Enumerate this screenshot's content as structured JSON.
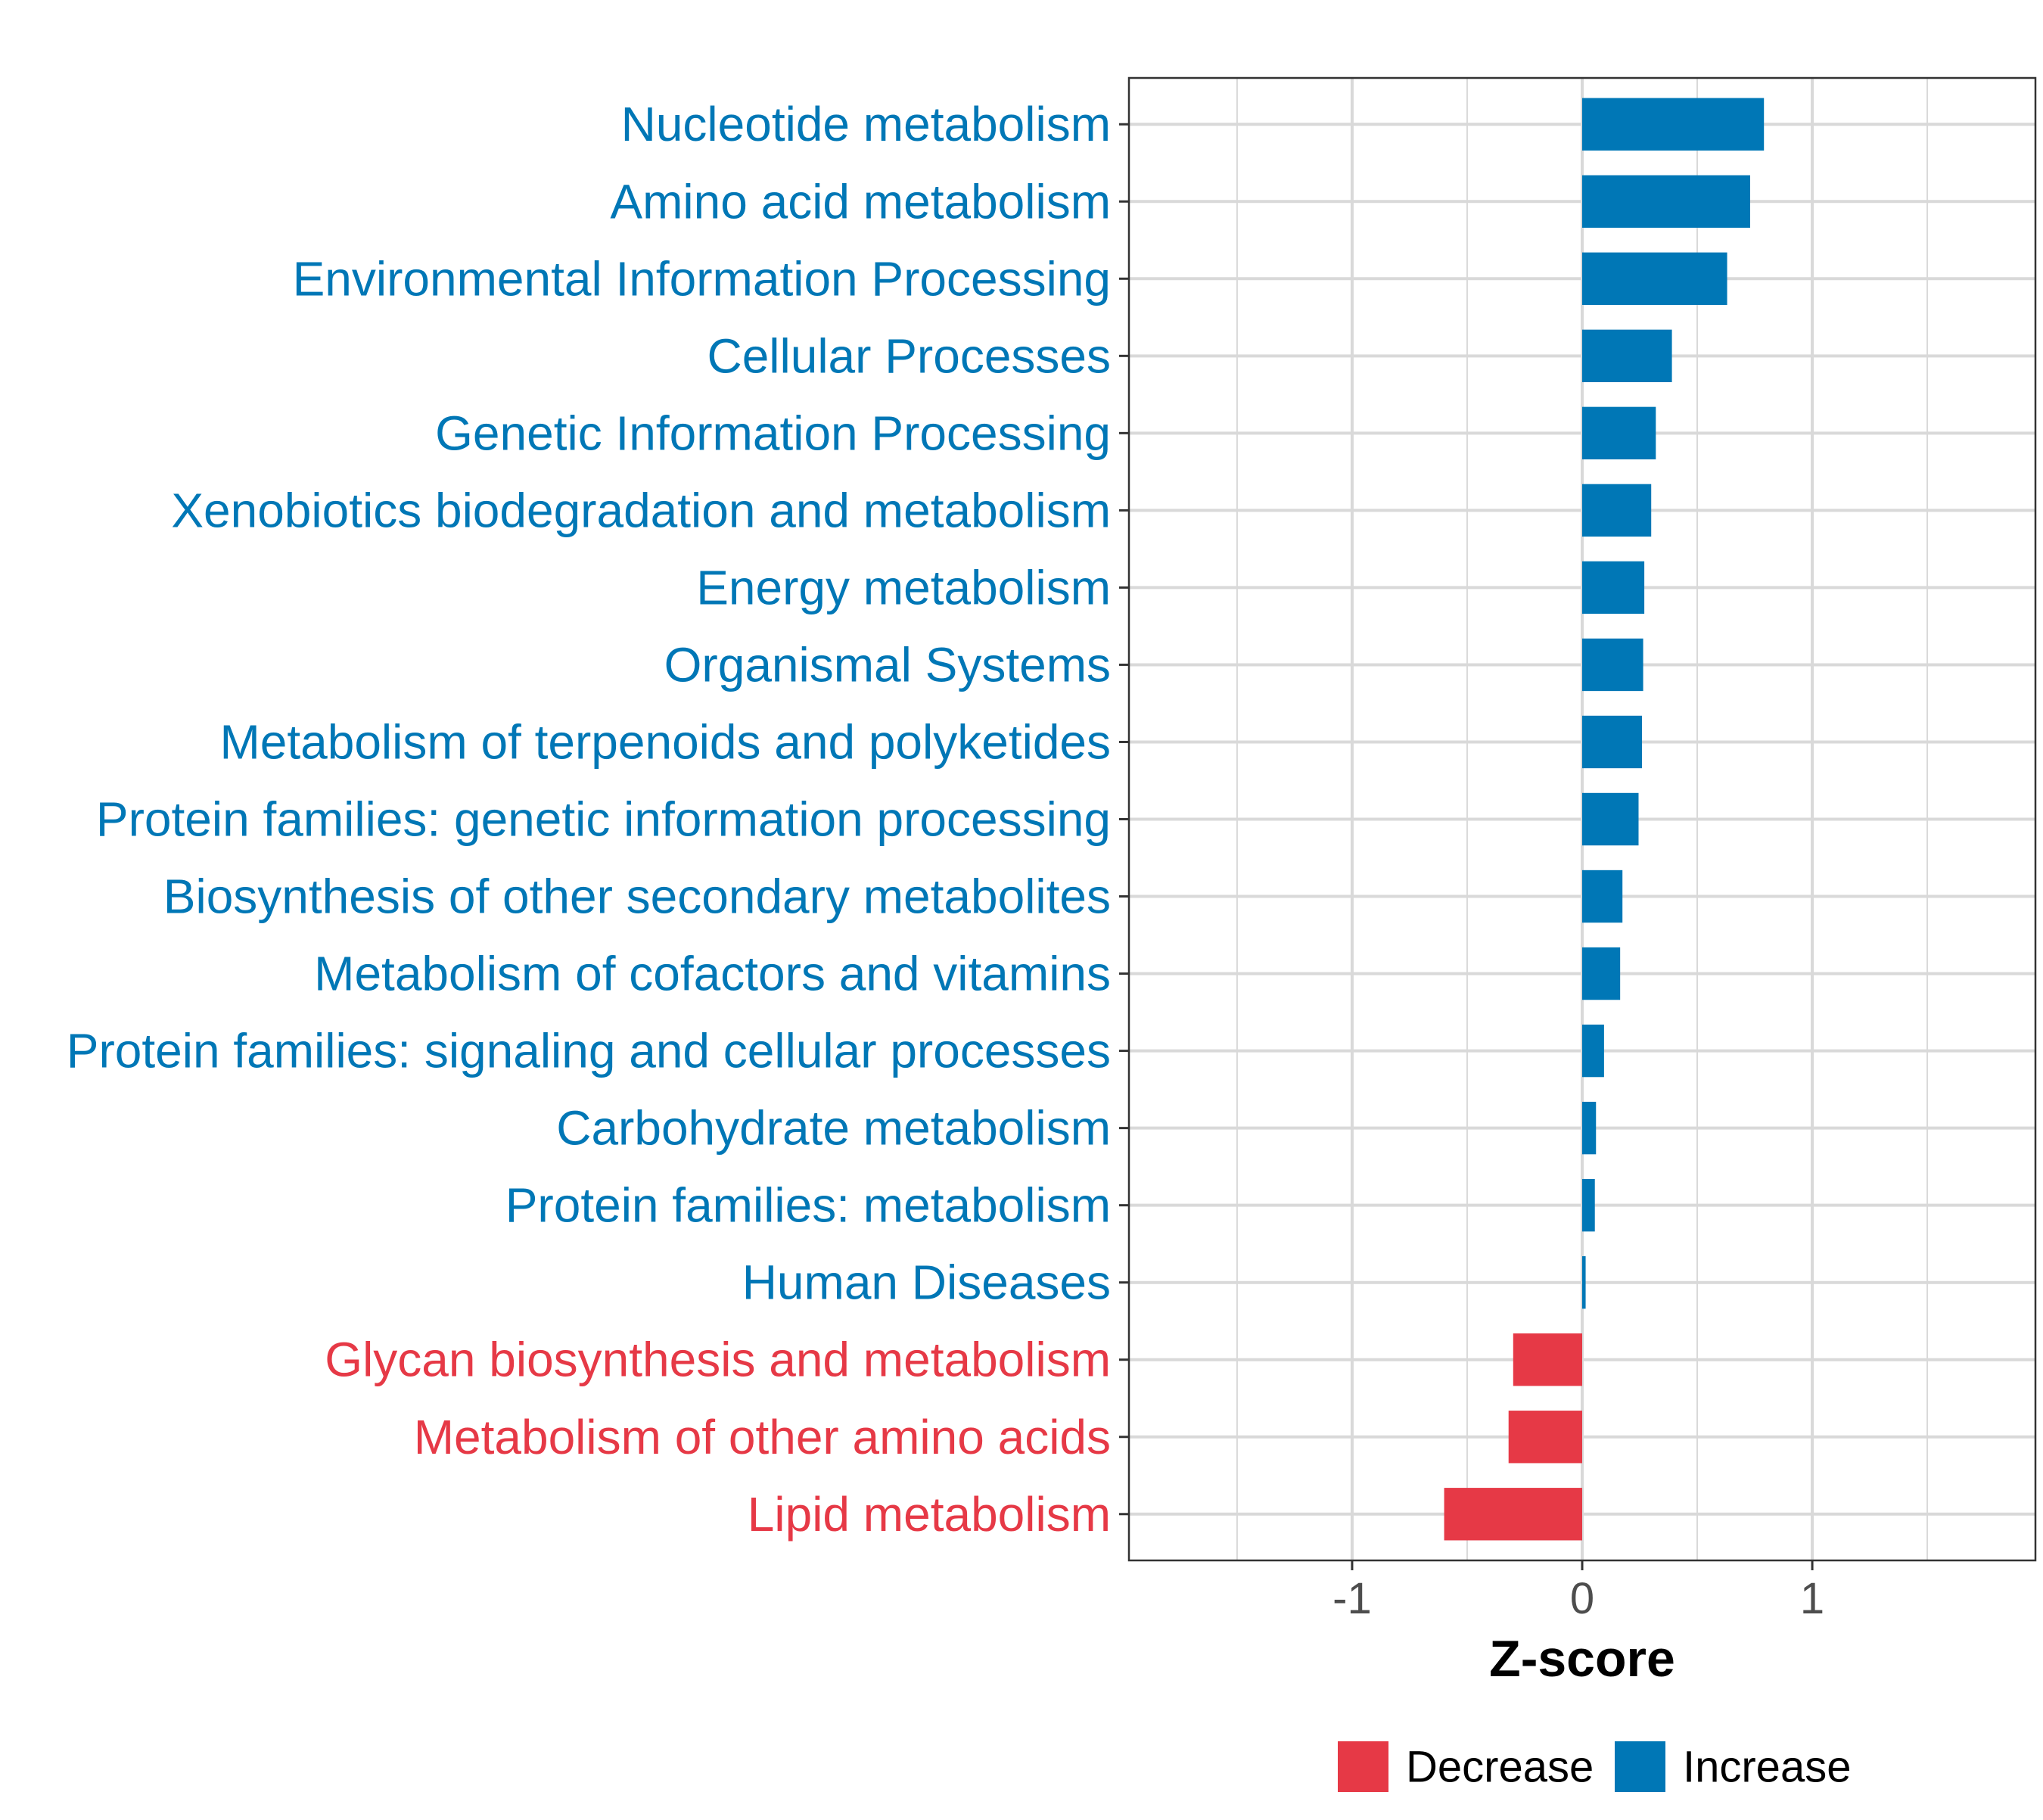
{
  "chart_data": {
    "type": "bar",
    "orientation": "horizontal",
    "title": "",
    "xlabel": "Z-score",
    "ylabel": "",
    "xlim": [
      -1.97,
      1.97
    ],
    "xticks": [
      -1,
      0,
      1
    ],
    "xtick_labels": [
      "-1",
      "0",
      "1"
    ],
    "grid": true,
    "legend_position": "bottom",
    "colors": {
      "Decrease": "#E63946",
      "Increase": "#0077B6"
    },
    "legend": [
      {
        "name": "Decrease",
        "color": "#E63946"
      },
      {
        "name": "Increase",
        "color": "#0077B6"
      }
    ],
    "categories": [
      "Nucleotide metabolism",
      "Amino acid metabolism",
      "Environmental Information Processing",
      "Cellular Processes",
      "Genetic Information Processing",
      "Xenobiotics biodegradation and metabolism",
      "Energy metabolism",
      "Organismal Systems",
      "Metabolism of terpenoids and polyketides",
      "Protein families: genetic information processing",
      "Biosynthesis of other secondary metabolites",
      "Metabolism of cofactors and vitamins",
      "Protein families: signaling and cellular processes",
      "Carbohydrate metabolism",
      "Protein families: metabolism",
      "Human Diseases",
      "Glycan biosynthesis and metabolism",
      "Metabolism of other amino acids",
      "Lipid metabolism"
    ],
    "values": [
      0.79,
      0.73,
      0.63,
      0.39,
      0.32,
      0.3,
      0.27,
      0.265,
      0.26,
      0.245,
      0.175,
      0.165,
      0.095,
      0.06,
      0.055,
      0.015,
      -0.3,
      -0.32,
      -0.6
    ],
    "groups": [
      "Increase",
      "Increase",
      "Increase",
      "Increase",
      "Increase",
      "Increase",
      "Increase",
      "Increase",
      "Increase",
      "Increase",
      "Increase",
      "Increase",
      "Increase",
      "Increase",
      "Increase",
      "Increase",
      "Decrease",
      "Decrease",
      "Decrease"
    ]
  }
}
